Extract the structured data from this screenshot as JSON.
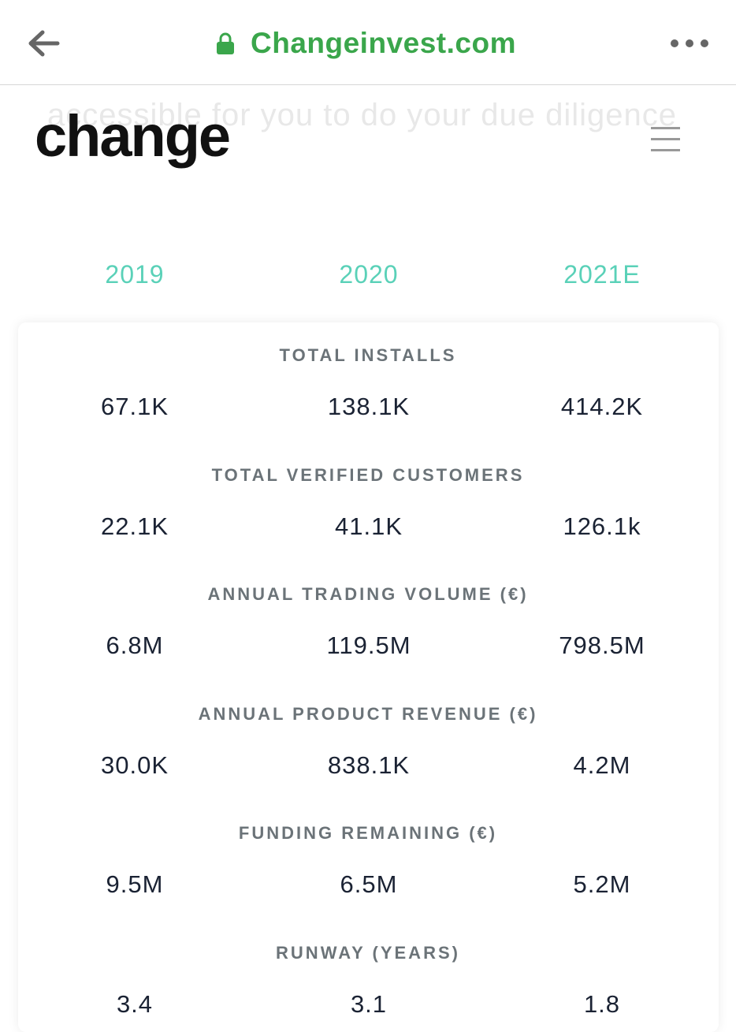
{
  "browser": {
    "url": "Changeinvest.com"
  },
  "page": {
    "background_text": "accessible for you to do your due diligence",
    "logo": "change",
    "years": [
      "2019",
      "2020",
      "2021E"
    ],
    "metrics": [
      {
        "label": "TOTAL INSTALLS",
        "values": [
          "67.1K",
          "138.1K",
          "414.2K"
        ]
      },
      {
        "label": "TOTAL VERIFIED CUSTOMERS",
        "values": [
          "22.1K",
          "41.1K",
          "126.1k"
        ]
      },
      {
        "label": "ANNUAL TRADING VOLUME (€)",
        "values": [
          "6.8M",
          "119.5M",
          "798.5M"
        ]
      },
      {
        "label": "ANNUAL PRODUCT REVENUE (€)",
        "values": [
          "30.0K",
          "838.1K",
          "4.2M"
        ]
      },
      {
        "label": "FUNDING REMAINING (€)",
        "values": [
          "9.5M",
          "6.5M",
          "5.2M"
        ]
      },
      {
        "label": "RUNWAY (YEARS)",
        "values": [
          "3.4",
          "3.1",
          "1.8"
        ]
      }
    ]
  }
}
